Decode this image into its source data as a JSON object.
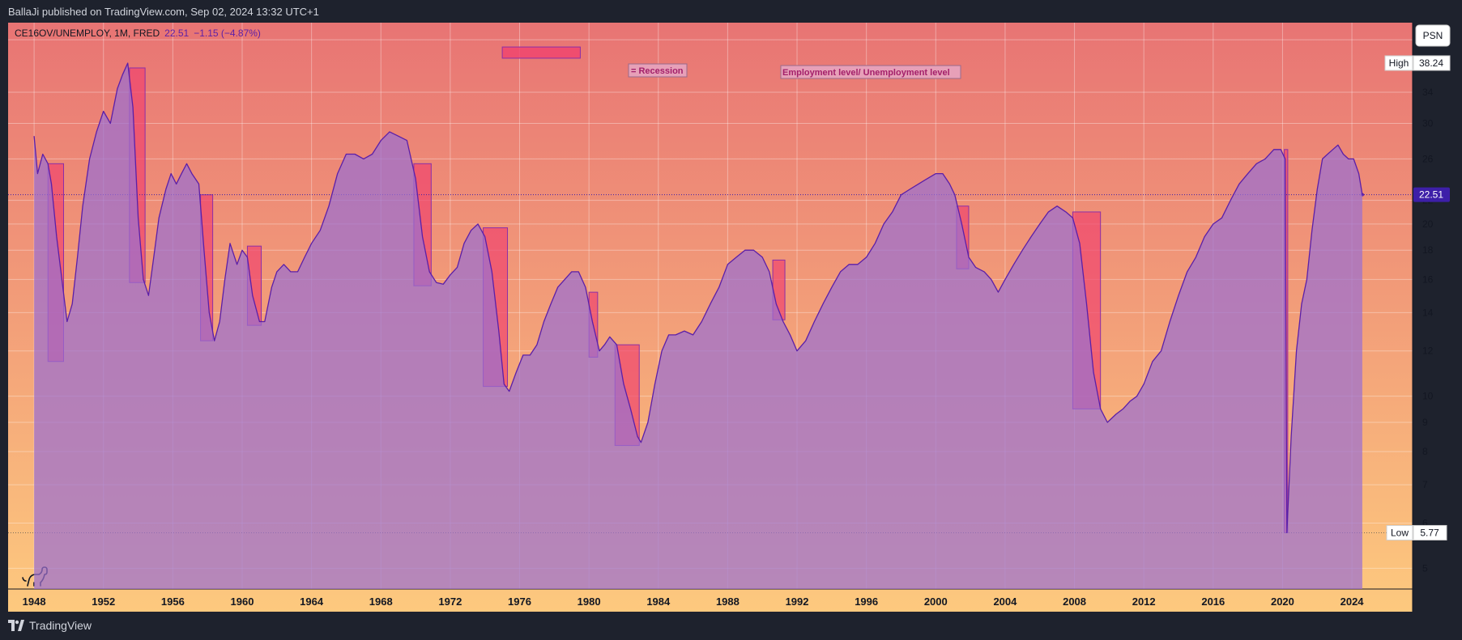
{
  "header": {
    "published_text": "BallaJi published on TradingView.com, Sep 02, 2024 13:32 UTC+1"
  },
  "footer": {
    "brand": "TradingView"
  },
  "legend": {
    "symbol": "CE16OV/UNEMPLOY, 1M, FRED",
    "last_value": "22.51",
    "change": "−1.15 (−4.87%)"
  },
  "scale_button": "PSN",
  "annotations": {
    "recession_label": "= Recession",
    "title_label": "Employment level/ Unemployment level"
  },
  "price_tags": {
    "high_label": "High",
    "high_value": "38.24",
    "low_label": "Low",
    "low_value": "5.77",
    "last_value": "22.51"
  },
  "colors": {
    "line": "#5b1fa8",
    "fill": "#9b6fd0",
    "recession": "#f0456e",
    "bg_top": "#e87474",
    "bg_bottom": "#fdc97e",
    "last_tag": "#3d1fa8"
  },
  "chart_data": {
    "type": "area",
    "title": "Employment level/ Unemployment level",
    "y_scale": "log",
    "ylim": [
      4.6,
      45
    ],
    "xlim": [
      1946.5,
      2027.5
    ],
    "x_ticks": [
      "1948",
      "1952",
      "1956",
      "1960",
      "1964",
      "1968",
      "1972",
      "1976",
      "1980",
      "1984",
      "1988",
      "1992",
      "1996",
      "2000",
      "2004",
      "2008",
      "2012",
      "2016",
      "2020",
      "2024"
    ],
    "y_ticks": [
      "5",
      "6",
      "7",
      "8",
      "9",
      "10",
      "12",
      "14",
      "16",
      "18",
      "20",
      "22",
      "26",
      "30",
      "34",
      "42"
    ],
    "series": [
      {
        "points": [
          [
            1948.0,
            28.5
          ],
          [
            1948.2,
            24.5
          ],
          [
            1948.5,
            26.5
          ],
          [
            1948.8,
            25.5
          ],
          [
            1949.0,
            23.5
          ],
          [
            1949.3,
            19.0
          ],
          [
            1949.6,
            16.0
          ],
          [
            1949.9,
            13.5
          ],
          [
            1950.2,
            14.5
          ],
          [
            1950.5,
            17.5
          ],
          [
            1950.8,
            21.5
          ],
          [
            1951.2,
            26.0
          ],
          [
            1951.6,
            29.0
          ],
          [
            1952.0,
            31.5
          ],
          [
            1952.4,
            30.0
          ],
          [
            1952.8,
            34.5
          ],
          [
            1953.1,
            36.5
          ],
          [
            1953.4,
            38.24
          ],
          [
            1953.7,
            32.0
          ],
          [
            1954.0,
            20.5
          ],
          [
            1954.3,
            16.0
          ],
          [
            1954.6,
            15.0
          ],
          [
            1954.9,
            17.5
          ],
          [
            1955.2,
            20.5
          ],
          [
            1955.6,
            23.0
          ],
          [
            1955.9,
            24.5
          ],
          [
            1956.2,
            23.5
          ],
          [
            1956.5,
            24.5
          ],
          [
            1956.8,
            25.5
          ],
          [
            1957.1,
            24.5
          ],
          [
            1957.5,
            23.5
          ],
          [
            1957.8,
            18.0
          ],
          [
            1958.1,
            14.0
          ],
          [
            1958.4,
            12.5
          ],
          [
            1958.7,
            13.5
          ],
          [
            1959.0,
            16.0
          ],
          [
            1959.3,
            18.5
          ],
          [
            1959.7,
            17.0
          ],
          [
            1960.0,
            18.0
          ],
          [
            1960.3,
            17.5
          ],
          [
            1960.6,
            15.0
          ],
          [
            1961.0,
            13.5
          ],
          [
            1961.3,
            13.5
          ],
          [
            1961.7,
            15.5
          ],
          [
            1962.0,
            16.5
          ],
          [
            1962.4,
            17.0
          ],
          [
            1962.8,
            16.5
          ],
          [
            1963.2,
            16.5
          ],
          [
            1963.6,
            17.5
          ],
          [
            1964.0,
            18.5
          ],
          [
            1964.5,
            19.5
          ],
          [
            1965.0,
            21.5
          ],
          [
            1965.5,
            24.5
          ],
          [
            1966.0,
            26.5
          ],
          [
            1966.5,
            26.5
          ],
          [
            1967.0,
            26.0
          ],
          [
            1967.5,
            26.5
          ],
          [
            1968.0,
            28.0
          ],
          [
            1968.5,
            29.0
          ],
          [
            1969.0,
            28.5
          ],
          [
            1969.5,
            28.0
          ],
          [
            1970.0,
            24.0
          ],
          [
            1970.4,
            19.0
          ],
          [
            1970.8,
            16.5
          ],
          [
            1971.2,
            15.8
          ],
          [
            1971.6,
            15.7
          ],
          [
            1972.0,
            16.3
          ],
          [
            1972.4,
            16.8
          ],
          [
            1972.8,
            18.5
          ],
          [
            1973.2,
            19.5
          ],
          [
            1973.6,
            20.0
          ],
          [
            1974.0,
            19.0
          ],
          [
            1974.4,
            16.5
          ],
          [
            1974.8,
            13.0
          ],
          [
            1975.1,
            10.5
          ],
          [
            1975.4,
            10.2
          ],
          [
            1975.8,
            11.0
          ],
          [
            1976.2,
            11.8
          ],
          [
            1976.6,
            11.8
          ],
          [
            1977.0,
            12.3
          ],
          [
            1977.4,
            13.5
          ],
          [
            1977.8,
            14.5
          ],
          [
            1978.2,
            15.5
          ],
          [
            1978.6,
            16.0
          ],
          [
            1979.0,
            16.5
          ],
          [
            1979.4,
            16.5
          ],
          [
            1979.8,
            15.5
          ],
          [
            1980.2,
            13.5
          ],
          [
            1980.6,
            12.0
          ],
          [
            1980.9,
            12.3
          ],
          [
            1981.2,
            12.7
          ],
          [
            1981.6,
            12.3
          ],
          [
            1982.0,
            10.5
          ],
          [
            1982.4,
            9.5
          ],
          [
            1982.8,
            8.5
          ],
          [
            1983.0,
            8.3
          ],
          [
            1983.4,
            9.0
          ],
          [
            1983.8,
            10.5
          ],
          [
            1984.2,
            12.0
          ],
          [
            1984.6,
            12.8
          ],
          [
            1985.0,
            12.8
          ],
          [
            1985.5,
            13.0
          ],
          [
            1986.0,
            12.8
          ],
          [
            1986.5,
            13.5
          ],
          [
            1987.0,
            14.5
          ],
          [
            1987.5,
            15.5
          ],
          [
            1988.0,
            17.0
          ],
          [
            1988.5,
            17.5
          ],
          [
            1989.0,
            18.0
          ],
          [
            1989.5,
            18.0
          ],
          [
            1990.0,
            17.5
          ],
          [
            1990.4,
            16.5
          ],
          [
            1990.8,
            14.5
          ],
          [
            1991.2,
            13.5
          ],
          [
            1991.6,
            12.8
          ],
          [
            1992.0,
            12.0
          ],
          [
            1992.5,
            12.5
          ],
          [
            1993.0,
            13.5
          ],
          [
            1993.5,
            14.5
          ],
          [
            1994.0,
            15.5
          ],
          [
            1994.5,
            16.5
          ],
          [
            1995.0,
            17.0
          ],
          [
            1995.5,
            17.0
          ],
          [
            1996.0,
            17.5
          ],
          [
            1996.5,
            18.5
          ],
          [
            1997.0,
            20.0
          ],
          [
            1997.5,
            21.0
          ],
          [
            1998.0,
            22.5
          ],
          [
            1998.5,
            23.0
          ],
          [
            1999.0,
            23.5
          ],
          [
            1999.5,
            24.0
          ],
          [
            2000.0,
            24.5
          ],
          [
            2000.4,
            24.5
          ],
          [
            2000.8,
            23.5
          ],
          [
            2001.1,
            22.5
          ],
          [
            2001.5,
            20.0
          ],
          [
            2001.9,
            17.5
          ],
          [
            2002.3,
            16.8
          ],
          [
            2002.8,
            16.5
          ],
          [
            2003.2,
            16.0
          ],
          [
            2003.6,
            15.2
          ],
          [
            2004.0,
            16.0
          ],
          [
            2004.5,
            17.0
          ],
          [
            2005.0,
            18.0
          ],
          [
            2005.5,
            19.0
          ],
          [
            2006.0,
            20.0
          ],
          [
            2006.5,
            21.0
          ],
          [
            2007.0,
            21.5
          ],
          [
            2007.5,
            21.0
          ],
          [
            2007.9,
            20.5
          ],
          [
            2008.3,
            18.5
          ],
          [
            2008.7,
            14.5
          ],
          [
            2009.1,
            11.0
          ],
          [
            2009.5,
            9.5
          ],
          [
            2009.9,
            9.0
          ],
          [
            2010.4,
            9.3
          ],
          [
            2010.8,
            9.5
          ],
          [
            2011.2,
            9.8
          ],
          [
            2011.6,
            10.0
          ],
          [
            2012.0,
            10.5
          ],
          [
            2012.5,
            11.5
          ],
          [
            2013.0,
            12.0
          ],
          [
            2013.5,
            13.5
          ],
          [
            2014.0,
            15.0
          ],
          [
            2014.5,
            16.5
          ],
          [
            2015.0,
            17.5
          ],
          [
            2015.5,
            19.0
          ],
          [
            2016.0,
            20.0
          ],
          [
            2016.5,
            20.5
          ],
          [
            2017.0,
            22.0
          ],
          [
            2017.5,
            23.5
          ],
          [
            2018.0,
            24.5
          ],
          [
            2018.5,
            25.5
          ],
          [
            2019.0,
            26.0
          ],
          [
            2019.5,
            27.0
          ],
          [
            2019.9,
            27.0
          ],
          [
            2020.15,
            26.0
          ],
          [
            2020.25,
            5.77
          ],
          [
            2020.5,
            8.5
          ],
          [
            2020.8,
            12.0
          ],
          [
            2021.1,
            14.5
          ],
          [
            2021.4,
            16.0
          ],
          [
            2021.7,
            19.5
          ],
          [
            2022.0,
            23.0
          ],
          [
            2022.3,
            26.0
          ],
          [
            2022.6,
            26.5
          ],
          [
            2022.9,
            27.0
          ],
          [
            2023.2,
            27.5
          ],
          [
            2023.5,
            26.5
          ],
          [
            2023.8,
            26.0
          ],
          [
            2024.1,
            26.0
          ],
          [
            2024.4,
            24.5
          ],
          [
            2024.6,
            22.51
          ]
        ]
      }
    ],
    "recessions": [
      {
        "start": 1948.8,
        "end": 1949.7,
        "top": 25.5,
        "bottom": 11.5
      },
      {
        "start": 1953.5,
        "end": 1954.4,
        "top": 37.5,
        "bottom": 15.8
      },
      {
        "start": 1957.6,
        "end": 1958.3,
        "top": 22.5,
        "bottom": 12.5
      },
      {
        "start": 1960.3,
        "end": 1961.1,
        "top": 18.3,
        "bottom": 13.3
      },
      {
        "start": 1969.9,
        "end": 1970.9,
        "top": 25.5,
        "bottom": 15.6
      },
      {
        "start": 1973.9,
        "end": 1975.3,
        "top": 19.7,
        "bottom": 10.4
      },
      {
        "start": 1980.0,
        "end": 1980.5,
        "top": 15.2,
        "bottom": 11.7
      },
      {
        "start": 1981.5,
        "end": 1982.9,
        "top": 12.3,
        "bottom": 8.2
      },
      {
        "start": 1990.6,
        "end": 1991.3,
        "top": 17.3,
        "bottom": 13.6
      },
      {
        "start": 2001.2,
        "end": 2001.9,
        "top": 21.5,
        "bottom": 16.7
      },
      {
        "start": 2007.9,
        "end": 2009.5,
        "top": 21.0,
        "bottom": 9.5
      },
      {
        "start": 2020.1,
        "end": 2020.3,
        "top": 27.0,
        "bottom": 5.77
      }
    ],
    "recession_legend_box": {
      "start": 1975.0,
      "end": 1979.5,
      "top": 39.0,
      "bottom": 40.8
    }
  }
}
